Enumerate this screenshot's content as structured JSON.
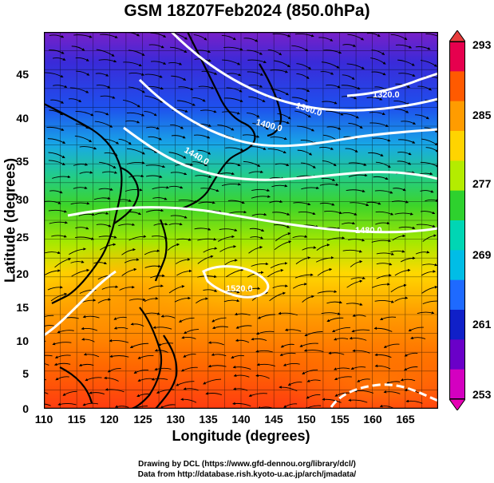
{
  "title": "GSM 18Z07Feb2024 (850.0hPa)",
  "xlabel": "Longitude (degrees)",
  "ylabel": "Latitude  (degrees)",
  "xticks": [
    "110",
    "115",
    "120",
    "125",
    "130",
    "135",
    "140",
    "145",
    "150",
    "155",
    "160",
    "165"
  ],
  "yticks": [
    "0",
    "5",
    "10",
    "15",
    "20",
    "25",
    "30",
    "35",
    "40",
    "45"
  ],
  "colorbar": {
    "ticks": [
      "293",
      "285",
      "277",
      "269",
      "261",
      "253"
    ],
    "colors": [
      "#e6004e",
      "#ff5a00",
      "#ff9c00",
      "#ffd400",
      "#b4ec00",
      "#2ed12e",
      "#00d6b4",
      "#00bde6",
      "#1e6aff",
      "#1020c8",
      "#6a00c8",
      "#d400c0"
    ]
  },
  "contours": {
    "labels": [
      "1320.0",
      "1360.0",
      "1400.0",
      "1440.0",
      "1480.0",
      "1520.0"
    ]
  },
  "credits": {
    "line1": "Drawing by DCL (https://www.gfd-dennou.org/library/dcl/)",
    "line2": "Data from http://database.rish.kyoto-u.ac.jp/arch/jmadata/"
  },
  "chart_data": {
    "type": "heatmap",
    "title": "GSM 18Z07Feb2024 (850.0hPa)",
    "xlabel": "Longitude (degrees)",
    "ylabel": "Latitude  (degrees)",
    "xlim": [
      110,
      170
    ],
    "ylim": [
      0,
      50
    ],
    "colorbar_range": [
      253,
      293
    ],
    "colorbar_ticks": [
      253,
      261,
      269,
      277,
      285,
      293
    ],
    "contour_levels": [
      1320.0,
      1360.0,
      1400.0,
      1440.0,
      1480.0,
      1520.0
    ],
    "grid": true
  }
}
